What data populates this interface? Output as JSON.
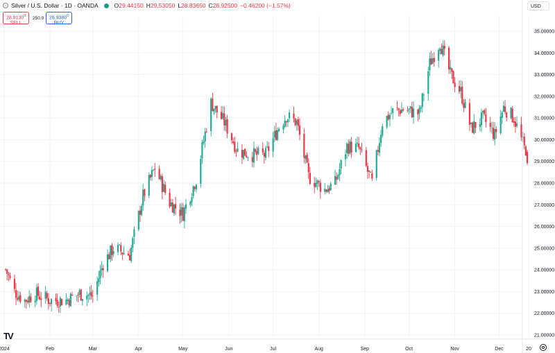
{
  "legend": {
    "symbol": "Silver / U.S. Dollar · 1D · OANDA",
    "open_key": "O",
    "open": "29.44150",
    "high_key": "H",
    "high": "29.53050",
    "low_key": "L",
    "low": "28.83650",
    "close_key": "C",
    "close": "28.92500",
    "change": "−0.46200 (−1.57%)",
    "status_color": "#1e9a87"
  },
  "trade": {
    "sell_price": "28.9130",
    "sell_sup": "0",
    "sell_label": "SELL",
    "spread": "250.0",
    "buy_price": "28.9380",
    "buy_sup": "0",
    "buy_label": "BUY"
  },
  "price_unit": "USD",
  "logo": "TV",
  "colors": {
    "up": "#22ab94",
    "down": "#f23645",
    "grid": "#f0f3fa"
  },
  "chart_data": {
    "type": "candlestick",
    "y_tick_labels": [
      "35.00000",
      "34.00000",
      "33.00000",
      "32.00000",
      "31.00000",
      "30.00000",
      "29.00000",
      "28.00000",
      "27.00000",
      "26.00000",
      "25.00000",
      "24.00000",
      "23.00000",
      "22.00000",
      "21.00000"
    ],
    "x_tick_labels": [
      "2024",
      "Feb",
      "Mar",
      "Apr",
      "May",
      "Jun",
      "Jul",
      "Aug",
      "Sep",
      "Oct",
      "Nov",
      "Dec",
      "20"
    ],
    "ylim": [
      20.6,
      35.6
    ],
    "grid": true,
    "series": [
      {
        "key": "close_anchors",
        "note": "approximate monthly path of closes",
        "x": [
          "2024-01-01",
          "2024-01-08",
          "2024-01-15",
          "2024-01-22",
          "2024-02-01",
          "2024-02-12",
          "2024-02-21",
          "2024-03-01",
          "2024-03-08",
          "2024-03-15",
          "2024-03-26",
          "2024-04-04",
          "2024-04-12",
          "2024-04-22",
          "2024-05-01",
          "2024-05-10",
          "2024-05-20",
          "2024-05-29",
          "2024-06-07",
          "2024-06-17",
          "2024-06-26",
          "2024-07-05",
          "2024-07-10",
          "2024-07-17",
          "2024-07-25",
          "2024-08-05",
          "2024-08-12",
          "2024-08-20",
          "2024-08-28",
          "2024-09-06",
          "2024-09-13",
          "2024-09-20",
          "2024-09-27",
          "2024-10-08",
          "2024-10-15",
          "2024-10-22",
          "2024-10-29",
          "2024-11-05",
          "2024-11-12",
          "2024-11-20",
          "2024-11-28",
          "2024-12-04",
          "2024-12-11",
          "2024-12-18",
          "2024-12-24"
        ],
        "y": [
          24.2,
          23.0,
          22.6,
          22.9,
          22.6,
          22.6,
          22.9,
          22.8,
          24.3,
          25.0,
          24.7,
          27.4,
          28.7,
          27.1,
          26.6,
          28.2,
          31.7,
          30.8,
          29.5,
          29.3,
          29.3,
          30.6,
          31.1,
          30.8,
          28.3,
          27.7,
          28.0,
          29.7,
          29.6,
          28.0,
          30.8,
          31.3,
          31.4,
          31.2,
          33.5,
          34.5,
          33.0,
          32.2,
          30.5,
          31.0,
          30.2,
          31.5,
          31.0,
          29.6,
          29.4
        ]
      },
      {
        "key": "last_candle",
        "x": [
          "2024-12-20"
        ],
        "open": [
          29.4415
        ],
        "high": [
          29.5305
        ],
        "low": [
          28.8365
        ],
        "close": [
          28.925
        ]
      }
    ]
  }
}
